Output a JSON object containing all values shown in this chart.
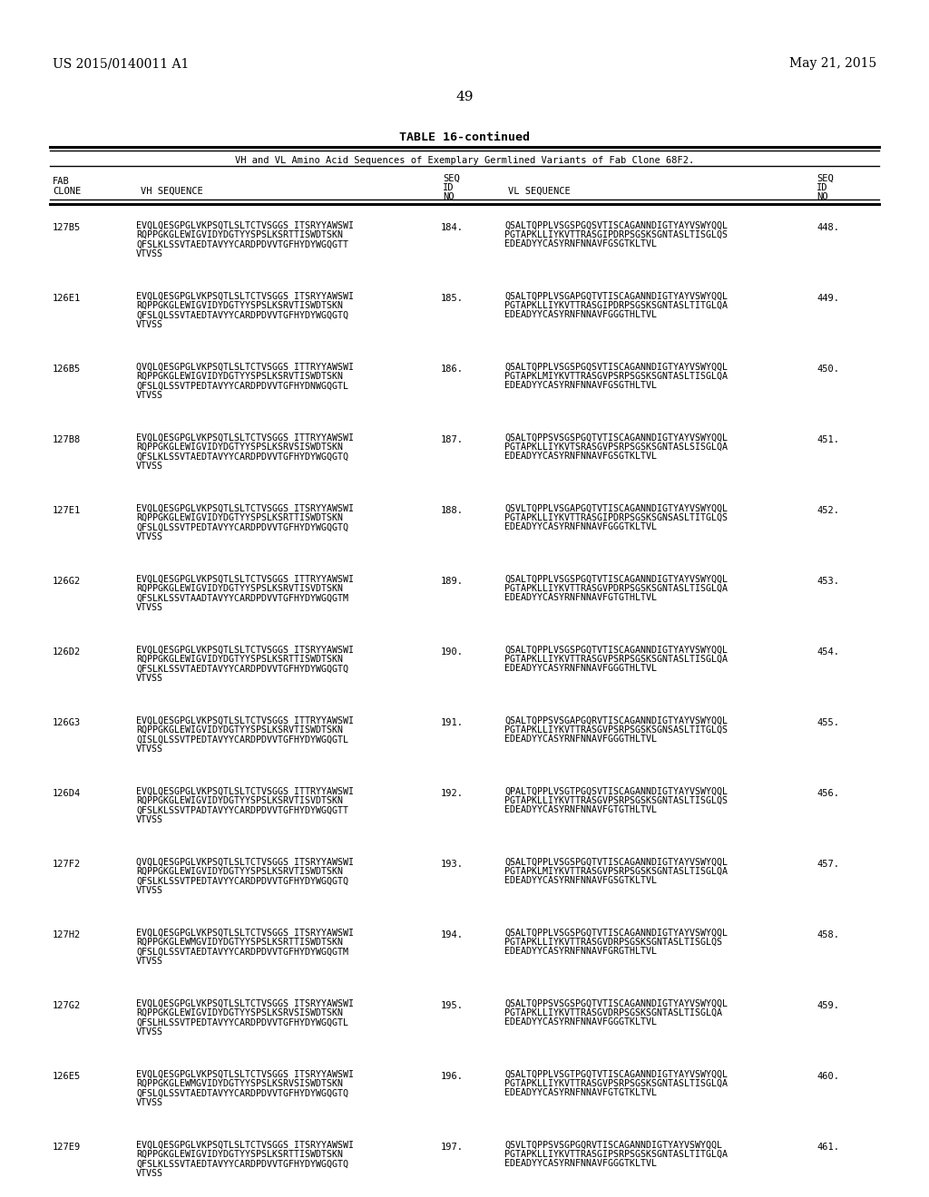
{
  "header_left": "US 2015/0140011 A1",
  "header_right": "May 21, 2015",
  "page_number": "49",
  "table_title": "TABLE 16-continued",
  "table_subtitle": "VH and VL Amino Acid Sequences of Exemplary Germlined Variants of Fab Clone 68F2.",
  "rows": [
    {
      "clone": "127B5",
      "vh": "EVQLQESGPGLVKPSQTLSLTCTVSGGS ITSRYYAWSWI\nRQPPGKGLEWIGVIDYDGTYYSPSLKSRTTISWDTSKN\nQFSLKLSSVTAEDTAVYYCARDPDVVTGFHYDYWGQGTT\nVTVSS",
      "seq_vh": "184.",
      "vl": "QSALTQPPLVSGSPGQSVTISCAGANNDIGTYAYVSWYQQL\nPGTAPKLLIYKVTTRASGIPDRPSGSKSGNTASLTISGLQS\nEDEADYYCASYRNFNNAVFGSGTKLTVL",
      "seq_vl": "448."
    },
    {
      "clone": "126E1",
      "vh": "EVQLQESGPGLVKPSQTLSLTCTVSGGS ITSRYYAWSWI\nRQPPGKGLEWIGVIDYDGTYYSPSLKSRVTISWDTSKN\nQFSLQLSSVTAEDTAVYYCARDPDVVTGFHYDYWGQGTQ\nVTVSS",
      "seq_vh": "185.",
      "vl": "QSALTQPPLVSGAPGQTVTISCAGANNDIGTYAYVSWYQQL\nPGTAPKLLIYKVTTRASGIPDRPSGSKSGNTASLTITGLQA\nEDEADYYCASYRNFNNAVFGGGTHLTVL",
      "seq_vl": "449."
    },
    {
      "clone": "126B5",
      "vh": "QVQLQESGPGLVKPSQTLSLTCTVSGGS ITTRYYAWSWI\nRQPPGKGLEWIGVIDYDGTYYSPSLKSRVTISWDTSKN\nQFSLQLSSVTPEDTAVYYCARDPDVVTGFHYDNWGQGTL\nVTVSS",
      "seq_vh": "186.",
      "vl": "QSALTQPPLVSGSPGQSVTISCAGANNDIGTYAYVSWYQQL\nPGTAPKLMIYKVTTRASGVPSRPSGSKSGNTASLTISGLQA\nEDEADYYCASYRNFNNAVFGSGTHLTVL",
      "seq_vl": "450."
    },
    {
      "clone": "127B8",
      "vh": "EVQLQESGPGLVKPSQTLSLTCTVSGGS ITTRYYAWSWI\nRQPPGKGLEWIGVIDYDGTYYSPSLKSRVSISWDTSKN\nQFSLKLSSVTAEDTAVYYCARDPDVVTGFHYDYWGQGTQ\nVTVSS",
      "seq_vh": "187.",
      "vl": "QSALTQPPSVSGSPGQTVTISCAGANNDIGTYAYVSWYQQL\nPGTAPKLLIYKVTSRASGVPSRPSGSKSGNTASLSISGLQA\nEDEADYYCASYRNFNNAVFGSGTKLTVL",
      "seq_vl": "451."
    },
    {
      "clone": "127E1",
      "vh": "EVQLQESGPGLVKPSQTLSLTCTVSGGS ITSRYYAWSWI\nRQPPGKGLEWIGVIDYDGTYYSPSLKSRTTISWDTSKN\nQFSLQLSSVTPEDTAVYYCARDPDVVTGFHYDYWGQGTQ\nVTVSS",
      "seq_vh": "188.",
      "vl": "QSVLTQPPLVSGAPGQTVTISCAGANNDIGTYAYVSWYQQL\nPGTAPKLLIYKVTTRASGIPDRPSGSKSGNSASLTITGLQS\nEDEADYYCASYRNFNNAVFGGGTKLTVL",
      "seq_vl": "452."
    },
    {
      "clone": "126G2",
      "vh": "EVQLQESGPGLVKPSQTLSLTCTVSGGS ITTRYYAWSWI\nRQPPGKGLEWIGVIDYDGTYYSPSLKSRVTISVDTSKN\nQFSLKLSSVTAADTAVYYCARDPDVVTGFHYDYWGQGTM\nVTVSS",
      "seq_vh": "189.",
      "vl": "QSALTQPPLVSGSPGQTVTISCAGANNDIGTYAYVSWYQQL\nPGTAPKLLIYKVTTRASGVPDRPSGSKSGNTASLTISGLQA\nEDEADYYCASYRNFNNAVFGTGTHLTVL",
      "seq_vl": "453."
    },
    {
      "clone": "126D2",
      "vh": "EVQLQESGPGLVKPSQTLSLTCTVSGGS ITSRYYAWSWI\nRQPPGKGLEWIGVIDYDGTYYSPSLKSRTTISWDTSKN\nQFSLKLSSVTAEDTAVYYCARDPDVVTGFHYDYWGQGTQ\nVTVSS",
      "seq_vh": "190.",
      "vl": "QSALTQPPLVSGSPGQTVTISCAGANNDIGTYAYVSWYQQL\nPGTAPKLLIYKVTTRASGVPSRPSGSKSGNTASLTISGLQA\nEDEADYYCASYRNFNNAVFGGGTHLTVL",
      "seq_vl": "454."
    },
    {
      "clone": "126G3",
      "vh": "EVQLQESGPGLVKPSQTLSLTCTVSGGS ITTRYYAWSWI\nRQPPGKGLEWIGVIDYDGTYYSPSLKSRVTISWDTSKN\nQISLQLSSVTPEDTAVYYCARDPDVVTGFHYDYWGQGTL\nVTVSS",
      "seq_vh": "191.",
      "vl": "QSALTQPPSVSGAPGQRVTISCAGANNDIGTYAYVSWYQQL\nPGTAPKLLIYKVTTRASGVPSRPSGSKSGNSASLTITGLQS\nEDEADYYCASYRNFNNAVFGGGTHLTVL",
      "seq_vl": "455."
    },
    {
      "clone": "126D4",
      "vh": "EVQLQESGPGLVKPSQTLSLTCTVSGGS ITTRYYAWSWI\nRQPPGKGLEWIGVIDYDGTYYSPSLKSRVTISVDTSKN\nQFSLKLSSVTPADTAVYYCARDPDVVTGFHYDYWGQGTT\nVTVSS",
      "seq_vh": "192.",
      "vl": "QPALTQPPLVSGTPGQSVTISCAGANNDIGTYAYVSWYQQL\nPGTAPKLLIYKVTTRASGVPSRPSGSKSGNTASLTISGLQS\nEDEADYYCASYRNFNNAVFGTGTHLTVL",
      "seq_vl": "456."
    },
    {
      "clone": "127F2",
      "vh": "QVQLQESGPGLVKPSQTLSLTCTVSGGS ITSRYYAWSWI\nRQPPGKGLEWIGVIDYDGTYYSPSLKSRVTISWDTSKN\nQFSLKLSSVTPEDTAVYYCARDPDVVTGFHYDYWGQGTQ\nVTVSS",
      "seq_vh": "193.",
      "vl": "QSALTQPPLVSGSPGQTVTISCAGANNDIGTYAYVSWYQQL\nPGTAPKLMIYKVTTRASGVPSRPSGSKSGNTASLTISGLQA\nEDEADYYCASYRNFNNAVFGSGTKLTVL",
      "seq_vl": "457."
    },
    {
      "clone": "127H2",
      "vh": "EVQLQESGPGLVKPSQTLSLTCTVSGGS ITSRYYAWSWI\nRQPPGKGLEWMGVIDYDGTYYSPSLKSRTTISWDTSKN\nQFSLQLSSVTAEDTAVYYCARDPDVVTGFHYDYWGQGTM\nVTVSS",
      "seq_vh": "194.",
      "vl": "QSALTQPPLVSGSPGQTVTISCAGANNDIGTYAYVSWYQQL\nPGTAPKLLIYKVTTRASGVDRPSGSKSGNTASLTISGLQS\nEDEADYYCASYRNFNNAVFGRGTHLTVL",
      "seq_vl": "458."
    },
    {
      "clone": "127G2",
      "vh": "EVQLQESGPGLVKPSQTLSLTCTVSGGS ITSRYYAWSWI\nRQPPGKGLEWIGVIDYDGTYYSPSLKSRVSISWDTSKN\nQFSLHLSSVTPEDTAVYYCARDPDVVTGFHYDYWGQGTL\nVTVSS",
      "seq_vh": "195.",
      "vl": "QSALTQPPSVSGSPGQTVTISCAGANNDIGTYAYVSWYQQL\nPGTAPKLLIYKVTTRASGVDRPSGSKSGNTASLTISGLQA\nEDEADYYCASYRNFNNAVFGGGTKLTVL",
      "seq_vl": "459."
    },
    {
      "clone": "126E5",
      "vh": "EVQLQESGPGLVKPSQTLSLTCTVSGGS ITSRYYAWSWI\nRQPPGKGLEWMGVIDYDGTYYSPSLKSRVSISWDTSKN\nQFSLQLSSVTAEDTAVYYCARDPDVVTGFHYDYWGQGTQ\nVTVSS",
      "seq_vh": "196.",
      "vl": "QSALTQPPLVSGTPGQTVTISCAGANNDIGTYAYVSWYQQL\nPGTAPKLLIYKVTTRASGVPSRPSGSKSGNTASLTISGLQA\nEDEADYYCASYRNFNNAVFGTGTKLTVL",
      "seq_vl": "460."
    },
    {
      "clone": "127E9",
      "vh": "EVQLQESGPGLVKPSQTLSLTCTVSGGS ITSRYYAWSWI\nRQPPGKGLEWIGVIDYDGTYYSPSLKSRTTISWDTSKN\nQFSLKLSSVTAEDTAVYYCARDPDVVTGFHYDYWGQGTQ\nVTVSS",
      "seq_vh": "197.",
      "vl": "QSVLTQPPSVSGPGQRVTISCAGANNDIGTYAYVSWYQQL\nPGTAPKLLIYKVTTRASGIPSRPSGSKSGNTASLTITGLQA\nEDEADYYCASYRNFNNAVFGGGTKLTVL",
      "seq_vl": "461."
    }
  ],
  "bg_color": "#ffffff",
  "text_color": "#000000"
}
